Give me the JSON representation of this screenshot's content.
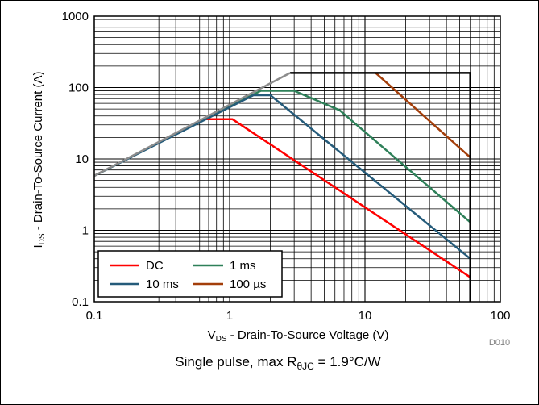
{
  "chart_data": {
    "type": "line",
    "scale": {
      "x": "log",
      "y": "log"
    },
    "xlim": [
      0.1,
      100
    ],
    "ylim": [
      0.1,
      1000
    ],
    "grid": true,
    "x_tick_labels": [
      "0.1",
      "1",
      "10",
      "100"
    ],
    "y_tick_labels": [
      "0.1",
      "1",
      "10",
      "100",
      "1000"
    ],
    "xlabel": {
      "main": "V",
      "sub": "DS",
      "rest": " - Drain-To-Source Voltage (V)"
    },
    "ylabel": {
      "main": "I",
      "sub": "DS",
      "rest": " - Drain-To-Source Current (A)"
    },
    "caption": {
      "pre": "Single pulse, max R",
      "sub": "θJC",
      "post": " = 1.9°C/W"
    },
    "figure_code": "D010",
    "legend_position": "bottom-left",
    "series": [
      {
        "name": "DC",
        "color": "#ff0000",
        "points": [
          [
            0.1,
            5.8
          ],
          [
            0.65,
            36
          ],
          [
            1.05,
            36
          ],
          [
            60,
            0.22
          ]
        ]
      },
      {
        "name": "1 ms",
        "color": "#2e8059",
        "points": [
          [
            0.1,
            5.8
          ],
          [
            1.7,
            90
          ],
          [
            3.0,
            90
          ],
          [
            6.5,
            48
          ],
          [
            60,
            1.3
          ]
        ]
      },
      {
        "name": "10 ms",
        "color": "#255b7a",
        "points": [
          [
            0.1,
            5.8
          ],
          [
            1.5,
            78
          ],
          [
            2.0,
            78
          ],
          [
            60,
            0.4
          ]
        ]
      },
      {
        "name": "100 µs",
        "color": "#a33e0a",
        "points": [
          [
            12,
            160
          ],
          [
            60,
            10.5
          ]
        ]
      },
      {
        "name": "",
        "color": "#000000",
        "points": [
          [
            2.8,
            160
          ],
          [
            60,
            160
          ],
          [
            60,
            0.1
          ]
        ]
      },
      {
        "name": "",
        "color": "#8c8c8c",
        "points": [
          [
            0.1,
            5.8
          ],
          [
            2.8,
            160
          ]
        ]
      }
    ]
  }
}
